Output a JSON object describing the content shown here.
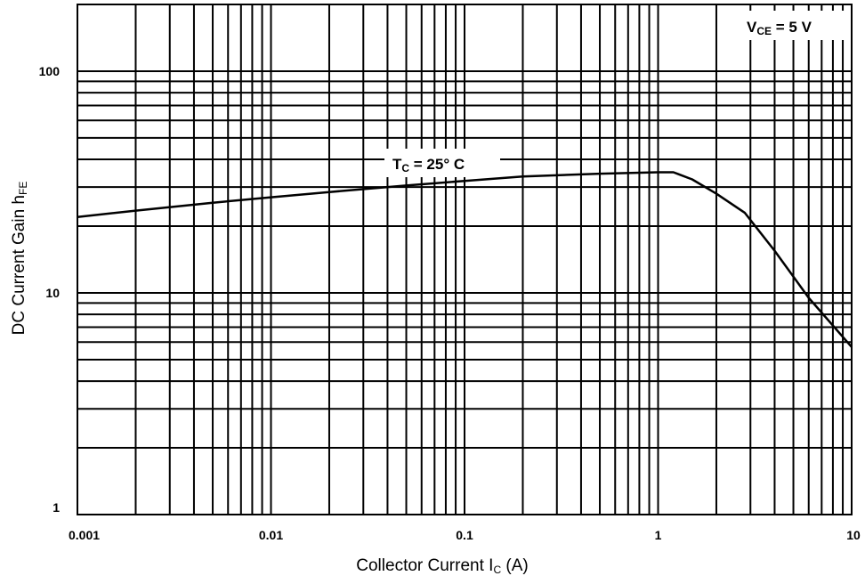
{
  "chart_data": {
    "type": "line",
    "title": "",
    "xscale": "log",
    "yscale": "log",
    "xlim": [
      0.001,
      10
    ],
    "ylim": [
      1,
      200
    ],
    "grid": true,
    "xlabel": {
      "main": "Collector Current  I",
      "sub": "C",
      "unit": "  (A)"
    },
    "ylabel": {
      "main": "DC Current Gain  h",
      "sub": "FE"
    },
    "x_ticks": [
      {
        "value": 0.001,
        "label": "0.001"
      },
      {
        "value": 0.01,
        "label": "0.01"
      },
      {
        "value": 0.1,
        "label": "0.1"
      },
      {
        "value": 1,
        "label": "1"
      },
      {
        "value": 10,
        "label": "10"
      }
    ],
    "y_ticks": [
      {
        "value": 1,
        "label": "1"
      },
      {
        "value": 10,
        "label": "10"
      },
      {
        "value": 100,
        "label": "100"
      }
    ],
    "annotations": [
      {
        "id": "vce",
        "main": "V",
        "sub": "CE",
        "rest": "  =  5  V",
        "position": "top-right"
      },
      {
        "id": "tc",
        "main": "T",
        "sub": "C",
        "rest": "  = 25° C",
        "near": {
          "x": 0.1,
          "y": 45
        }
      }
    ],
    "series": [
      {
        "line_color": "#000000",
        "points": [
          {
            "x": 0.001,
            "y": 22
          },
          {
            "x": 0.002,
            "y": 23.5
          },
          {
            "x": 0.005,
            "y": 25.5
          },
          {
            "x": 0.01,
            "y": 27
          },
          {
            "x": 0.02,
            "y": 28.5
          },
          {
            "x": 0.05,
            "y": 30.5
          },
          {
            "x": 0.1,
            "y": 32
          },
          {
            "x": 0.2,
            "y": 33.5
          },
          {
            "x": 0.5,
            "y": 34.5
          },
          {
            "x": 1.0,
            "y": 35
          },
          {
            "x": 1.2,
            "y": 35
          },
          {
            "x": 1.5,
            "y": 32.5
          },
          {
            "x": 2.0,
            "y": 28
          },
          {
            "x": 2.8,
            "y": 23
          },
          {
            "x": 4.0,
            "y": 15.5
          },
          {
            "x": 6.0,
            "y": 9.5
          },
          {
            "x": 10.0,
            "y": 5.7
          }
        ]
      }
    ]
  }
}
